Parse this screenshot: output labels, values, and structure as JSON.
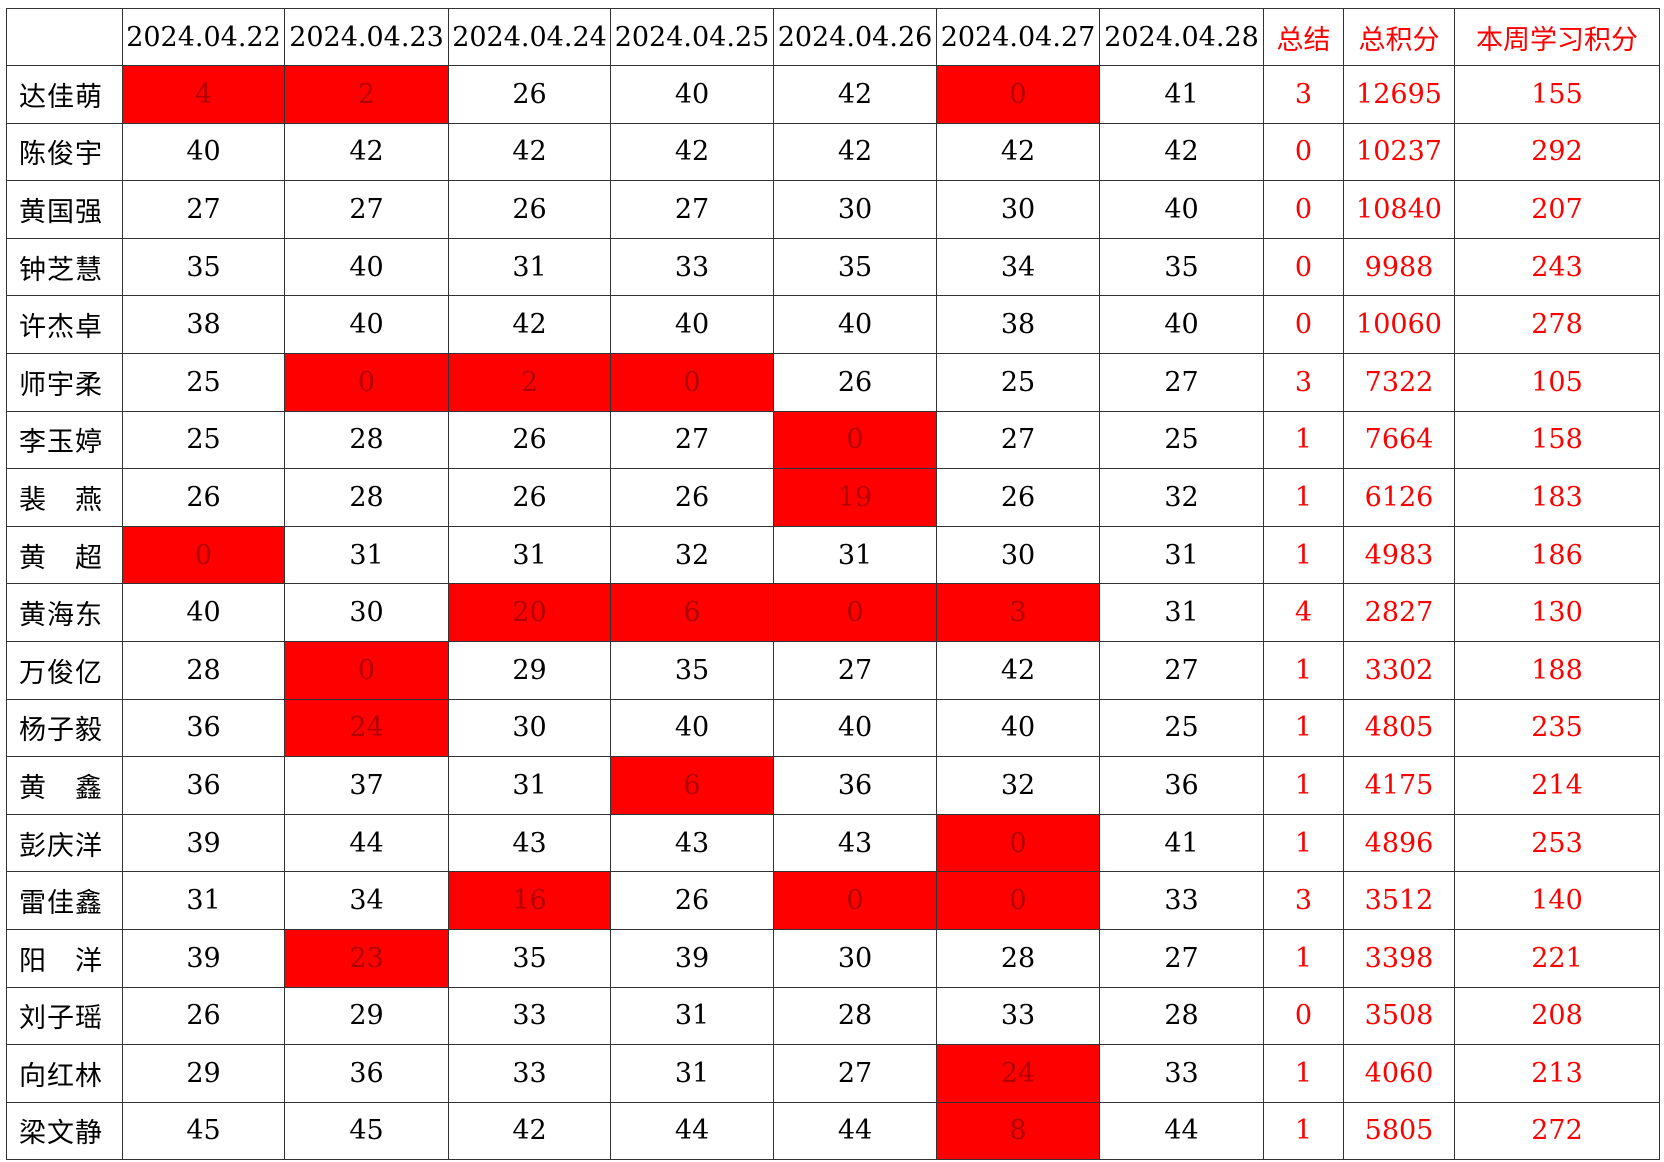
{
  "table": {
    "header": [
      "2024.04.22",
      "2024.04.23",
      "2024.04.24",
      "2024.04.25",
      "2024.04.26",
      "2024.04.27",
      "2024.04.28",
      "总结",
      "总积分",
      "本周学习积分"
    ],
    "header_red_from": "总结",
    "highlight_fill": "#ff0000",
    "rows": [
      {
        "name": "达佳萌",
        "scores": [
          {
            "value": 4,
            "highlight": true
          },
          {
            "value": 2,
            "highlight": true
          },
          26,
          40,
          42,
          {
            "value": 0,
            "highlight": true
          },
          41
        ],
        "summary": 3,
        "total": 12695,
        "week": 155
      },
      {
        "name": "陈俊宇",
        "scores": [
          40,
          42,
          42,
          42,
          42,
          42,
          42
        ],
        "summary": 0,
        "total": 10237,
        "week": 292
      },
      {
        "name": "黄国强",
        "scores": [
          27,
          27,
          26,
          27,
          30,
          30,
          40
        ],
        "summary": 0,
        "total": 10840,
        "week": 207
      },
      {
        "name": "钟芝慧",
        "scores": [
          35,
          40,
          31,
          33,
          35,
          34,
          35
        ],
        "summary": 0,
        "total": 9988,
        "week": 243
      },
      {
        "name": "许杰卓",
        "scores": [
          38,
          40,
          42,
          40,
          40,
          38,
          40
        ],
        "summary": 0,
        "total": 10060,
        "week": 278
      },
      {
        "name": "师宇柔",
        "scores": [
          25,
          {
            "value": 0,
            "highlight": true
          },
          {
            "value": 2,
            "highlight": true
          },
          {
            "value": 0,
            "highlight": true
          },
          26,
          25,
          27
        ],
        "summary": 3,
        "total": 7322,
        "week": 105
      },
      {
        "name": "李玉婷",
        "scores": [
          25,
          28,
          26,
          27,
          {
            "value": 0,
            "highlight": true
          },
          27,
          25
        ],
        "summary": 1,
        "total": 7664,
        "week": 158
      },
      {
        "name": "裴　燕",
        "scores": [
          26,
          28,
          26,
          26,
          {
            "value": 19,
            "highlight": true
          },
          26,
          32
        ],
        "summary": 1,
        "total": 6126,
        "week": 183
      },
      {
        "name": "黄　超",
        "scores": [
          {
            "value": 0,
            "highlight": true
          },
          31,
          31,
          32,
          31,
          30,
          31
        ],
        "summary": 1,
        "total": 4983,
        "week": 186
      },
      {
        "name": "黄海东",
        "scores": [
          40,
          30,
          {
            "value": 20,
            "highlight": true
          },
          {
            "value": 6,
            "highlight": true
          },
          {
            "value": 0,
            "highlight": true
          },
          {
            "value": 3,
            "highlight": true
          },
          31
        ],
        "summary": 4,
        "total": 2827,
        "week": 130
      },
      {
        "name": "万俊亿",
        "scores": [
          28,
          {
            "value": 0,
            "highlight": true
          },
          29,
          35,
          27,
          42,
          27
        ],
        "summary": 1,
        "total": 3302,
        "week": 188
      },
      {
        "name": "杨子毅",
        "scores": [
          36,
          {
            "value": 24,
            "highlight": true
          },
          30,
          40,
          40,
          40,
          25
        ],
        "summary": 1,
        "total": 4805,
        "week": 235
      },
      {
        "name": "黄　鑫",
        "scores": [
          36,
          37,
          31,
          {
            "value": 6,
            "highlight": true
          },
          36,
          32,
          36
        ],
        "summary": 1,
        "total": 4175,
        "week": 214
      },
      {
        "name": "彭庆洋",
        "scores": [
          39,
          44,
          43,
          43,
          43,
          {
            "value": 0,
            "highlight": true
          },
          41
        ],
        "summary": 1,
        "total": 4896,
        "week": 253
      },
      {
        "name": "雷佳鑫",
        "scores": [
          31,
          34,
          {
            "value": 16,
            "highlight": true
          },
          26,
          {
            "value": 0,
            "highlight": true
          },
          {
            "value": 0,
            "highlight": true
          },
          33
        ],
        "summary": 3,
        "total": 3512,
        "week": 140
      },
      {
        "name": "阳　洋",
        "scores": [
          39,
          {
            "value": 23,
            "highlight": true
          },
          35,
          39,
          30,
          28,
          27
        ],
        "summary": 1,
        "total": 3398,
        "week": 221
      },
      {
        "name": "刘子瑶",
        "scores": [
          26,
          29,
          33,
          31,
          28,
          33,
          28
        ],
        "summary": 0,
        "total": 3508,
        "week": 208
      },
      {
        "name": "向红林",
        "scores": [
          29,
          36,
          33,
          31,
          27,
          {
            "value": 24,
            "highlight": true
          },
          33
        ],
        "summary": 1,
        "total": 4060,
        "week": 213
      },
      {
        "name": "梁文静",
        "scores": [
          45,
          45,
          42,
          44,
          44,
          {
            "value": 8,
            "highlight": true
          },
          44
        ],
        "summary": 1,
        "total": 5805,
        "week": 272
      }
    ]
  }
}
